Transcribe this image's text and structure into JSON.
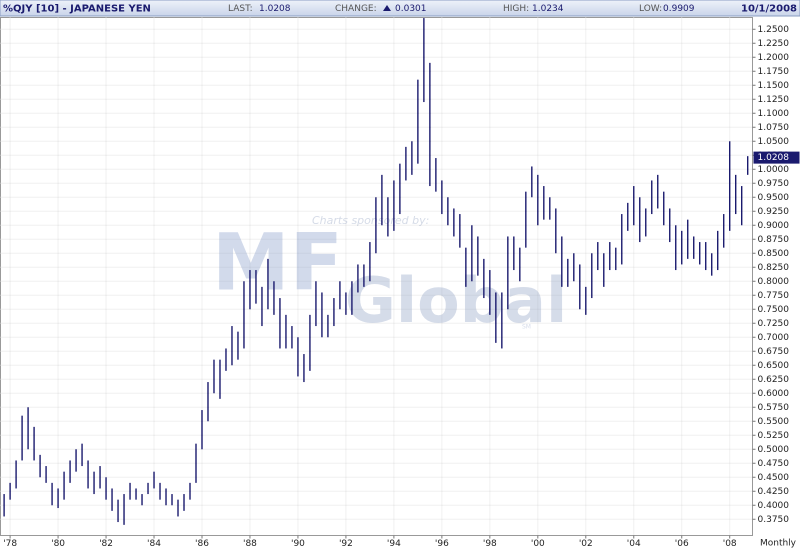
{
  "header": {
    "symbol": "%QJY [10] - JAPANESE YEN",
    "last_label": "LAST:",
    "last": "1.0208",
    "change_label": "CHANGE:",
    "change": "0.0301",
    "high_label": "HIGH:",
    "high": "1.0234",
    "low_label": "LOW:",
    "low": "0.9909",
    "date": "10/1/2008"
  },
  "watermark": {
    "sponsor": "Charts sponsored by:",
    "brand_a": "MF",
    "brand_b": "Global",
    "mark": "SM"
  },
  "chart_data": {
    "type": "hilo",
    "frequency_label": "Monthly",
    "color": "#1a1a6e",
    "grid": true,
    "xlim": [
      1977.6,
      2008.95
    ],
    "xticks": [
      {
        "value": 1978,
        "label": "'78"
      },
      {
        "value": 1980,
        "label": "'80"
      },
      {
        "value": 1982,
        "label": "'82"
      },
      {
        "value": 1984,
        "label": "'84"
      },
      {
        "value": 1986,
        "label": "'86"
      },
      {
        "value": 1988,
        "label": "'88"
      },
      {
        "value": 1990,
        "label": "'90"
      },
      {
        "value": 1992,
        "label": "'92"
      },
      {
        "value": 1994,
        "label": "'94"
      },
      {
        "value": 1996,
        "label": "'96"
      },
      {
        "value": 1998,
        "label": "'98"
      },
      {
        "value": 2000,
        "label": "'00"
      },
      {
        "value": 2002,
        "label": "'02"
      },
      {
        "value": 2004,
        "label": "'04"
      },
      {
        "value": 2006,
        "label": "'06"
      },
      {
        "value": 2008,
        "label": "'08"
      }
    ],
    "ylim": [
      0.346,
      1.271
    ],
    "yticks": [
      {
        "value": 0.375,
        "label": "0.3750"
      },
      {
        "value": 0.4,
        "label": "0.4000"
      },
      {
        "value": 0.425,
        "label": "0.4250"
      },
      {
        "value": 0.45,
        "label": "0.4500"
      },
      {
        "value": 0.475,
        "label": "0.4750"
      },
      {
        "value": 0.5,
        "label": "0.5000"
      },
      {
        "value": 0.525,
        "label": "0.5250"
      },
      {
        "value": 0.55,
        "label": "0.5500"
      },
      {
        "value": 0.575,
        "label": "0.5750"
      },
      {
        "value": 0.6,
        "label": "0.6000"
      },
      {
        "value": 0.625,
        "label": "0.6250"
      },
      {
        "value": 0.65,
        "label": "0.6500"
      },
      {
        "value": 0.675,
        "label": "0.6750"
      },
      {
        "value": 0.7,
        "label": "0.7000"
      },
      {
        "value": 0.725,
        "label": "0.7250"
      },
      {
        "value": 0.75,
        "label": "0.7500"
      },
      {
        "value": 0.775,
        "label": "0.7750"
      },
      {
        "value": 0.8,
        "label": "0.8000"
      },
      {
        "value": 0.825,
        "label": "0.8250"
      },
      {
        "value": 0.85,
        "label": "0.8500"
      },
      {
        "value": 0.875,
        "label": "0.8750"
      },
      {
        "value": 0.9,
        "label": "0.9000"
      },
      {
        "value": 0.925,
        "label": "0.9250"
      },
      {
        "value": 0.95,
        "label": "0.9500"
      },
      {
        "value": 0.975,
        "label": "0.9750"
      },
      {
        "value": 1.0,
        "label": "1.0000"
      },
      {
        "value": 1.025,
        "label": "1.0250"
      },
      {
        "value": 1.05,
        "label": "1.0500"
      },
      {
        "value": 1.075,
        "label": "1.0750"
      },
      {
        "value": 1.1,
        "label": "1.1000"
      },
      {
        "value": 1.125,
        "label": "1.1250"
      },
      {
        "value": 1.15,
        "label": "1.1500"
      },
      {
        "value": 1.175,
        "label": "1.1750"
      },
      {
        "value": 1.2,
        "label": "1.2000"
      },
      {
        "value": 1.225,
        "label": "1.2250"
      },
      {
        "value": 1.25,
        "label": "1.2500"
      }
    ],
    "x": [
      1977.75,
      1978,
      1978.25,
      1978.5,
      1978.75,
      1979,
      1979.25,
      1979.5,
      1979.75,
      1980,
      1980.25,
      1980.5,
      1980.75,
      1981,
      1981.25,
      1981.5,
      1981.75,
      1982,
      1982.25,
      1982.5,
      1982.75,
      1983,
      1983.25,
      1983.5,
      1983.75,
      1984,
      1984.25,
      1984.5,
      1984.75,
      1985,
      1985.25,
      1985.5,
      1985.75,
      1986,
      1986.25,
      1986.5,
      1986.75,
      1987,
      1987.25,
      1987.5,
      1987.75,
      1988,
      1988.25,
      1988.5,
      1988.75,
      1989,
      1989.25,
      1989.5,
      1989.75,
      1990,
      1990.25,
      1990.5,
      1990.75,
      1991,
      1991.25,
      1991.5,
      1991.75,
      1992,
      1992.25,
      1992.5,
      1992.75,
      1993,
      1993.25,
      1993.5,
      1993.75,
      1994,
      1994.25,
      1994.5,
      1994.75,
      1995,
      1995.25,
      1995.5,
      1995.75,
      1996,
      1996.25,
      1996.5,
      1996.75,
      1997,
      1997.25,
      1997.5,
      1997.75,
      1998,
      1998.25,
      1998.5,
      1998.75,
      1999,
      1999.25,
      1999.5,
      1999.75,
      2000,
      2000.25,
      2000.5,
      2000.75,
      2001,
      2001.25,
      2001.5,
      2001.75,
      2002,
      2002.25,
      2002.5,
      2002.75,
      2003,
      2003.25,
      2003.5,
      2003.75,
      2004,
      2004.25,
      2004.5,
      2004.75,
      2005,
      2005.25,
      2005.5,
      2005.75,
      2006,
      2006.25,
      2006.5,
      2006.75,
      2007,
      2007.25,
      2007.5,
      2007.75,
      2008,
      2008.25,
      2008.5,
      2008.75
    ],
    "high": [
      0.42,
      0.44,
      0.48,
      0.56,
      0.575,
      0.54,
      0.49,
      0.47,
      0.44,
      0.43,
      0.46,
      0.48,
      0.5,
      0.51,
      0.48,
      0.46,
      0.47,
      0.45,
      0.43,
      0.41,
      0.42,
      0.44,
      0.43,
      0.42,
      0.44,
      0.46,
      0.44,
      0.43,
      0.42,
      0.41,
      0.42,
      0.44,
      0.51,
      0.57,
      0.62,
      0.66,
      0.66,
      0.68,
      0.72,
      0.71,
      0.8,
      0.82,
      0.82,
      0.79,
      0.84,
      0.8,
      0.77,
      0.74,
      0.72,
      0.7,
      0.67,
      0.74,
      0.8,
      0.78,
      0.74,
      0.77,
      0.8,
      0.78,
      0.8,
      0.83,
      0.83,
      0.87,
      0.95,
      0.99,
      0.95,
      0.98,
      1.01,
      1.04,
      1.05,
      1.16,
      1.27,
      1.19,
      1.02,
      0.98,
      0.95,
      0.93,
      0.92,
      0.86,
      0.9,
      0.88,
      0.84,
      0.82,
      0.78,
      0.78,
      0.88,
      0.88,
      0.86,
      0.96,
      1.005,
      0.99,
      0.97,
      0.95,
      0.93,
      0.88,
      0.84,
      0.85,
      0.83,
      0.79,
      0.85,
      0.87,
      0.85,
      0.87,
      0.86,
      0.92,
      0.94,
      0.97,
      0.95,
      0.93,
      0.98,
      0.99,
      0.96,
      0.93,
      0.9,
      0.89,
      0.91,
      0.88,
      0.87,
      0.87,
      0.85,
      0.89,
      0.92,
      1.05,
      0.99,
      0.97,
      1.0234
    ],
    "low": [
      0.38,
      0.41,
      0.43,
      0.48,
      0.5,
      0.48,
      0.45,
      0.44,
      0.4,
      0.395,
      0.41,
      0.44,
      0.46,
      0.47,
      0.43,
      0.42,
      0.43,
      0.41,
      0.39,
      0.37,
      0.365,
      0.41,
      0.41,
      0.4,
      0.42,
      0.43,
      0.41,
      0.4,
      0.4,
      0.38,
      0.39,
      0.41,
      0.44,
      0.5,
      0.55,
      0.6,
      0.59,
      0.64,
      0.65,
      0.66,
      0.68,
      0.75,
      0.76,
      0.72,
      0.75,
      0.74,
      0.68,
      0.68,
      0.68,
      0.63,
      0.62,
      0.64,
      0.72,
      0.7,
      0.7,
      0.72,
      0.75,
      0.74,
      0.74,
      0.78,
      0.79,
      0.8,
      0.85,
      0.9,
      0.88,
      0.89,
      0.92,
      0.98,
      0.99,
      1.01,
      1.12,
      0.97,
      0.96,
      0.92,
      0.9,
      0.88,
      0.86,
      0.79,
      0.8,
      0.81,
      0.77,
      0.74,
      0.69,
      0.68,
      0.75,
      0.82,
      0.8,
      0.86,
      0.95,
      0.9,
      0.91,
      0.91,
      0.85,
      0.79,
      0.79,
      0.8,
      0.75,
      0.74,
      0.77,
      0.82,
      0.79,
      0.82,
      0.82,
      0.83,
      0.89,
      0.9,
      0.87,
      0.88,
      0.92,
      0.93,
      0.9,
      0.87,
      0.82,
      0.83,
      0.84,
      0.84,
      0.83,
      0.82,
      0.81,
      0.82,
      0.86,
      0.89,
      0.92,
      0.9,
      0.99
    ]
  }
}
